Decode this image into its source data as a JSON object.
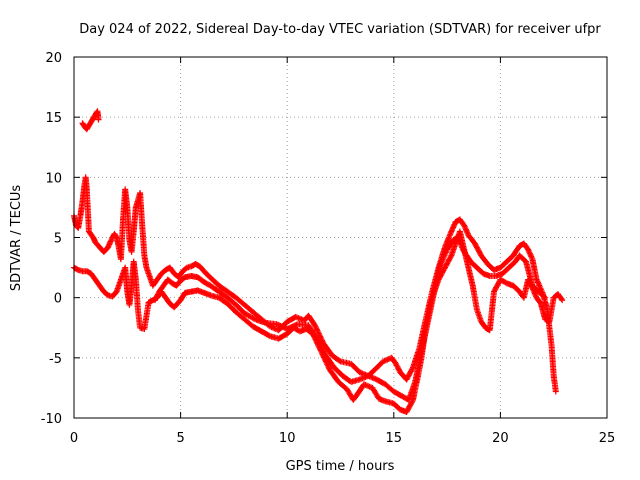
{
  "chart_data": {
    "type": "scatter",
    "title": "Day 024 of 2022, Sidereal Day-to-day VTEC variation (SDTVAR) for receiver ufpr",
    "xlabel": "GPS time / hours",
    "ylabel": "SDTVAR / TECUs",
    "xlim": [
      0,
      25
    ],
    "ylim": [
      -10,
      20
    ],
    "xticks": [
      0,
      5,
      10,
      15,
      20,
      25
    ],
    "yticks": [
      -10,
      -5,
      0,
      5,
      10,
      15,
      20
    ],
    "grid": true,
    "marker": "+",
    "series": [
      {
        "name": "upper track",
        "color": "#ff0000",
        "points": [
          [
            0.0,
            6.8
          ],
          [
            0.1,
            6.0
          ],
          [
            0.2,
            5.8
          ],
          [
            0.3,
            6.8
          ],
          [
            0.4,
            8.0
          ],
          [
            0.5,
            9.5
          ],
          [
            0.55,
            10.0
          ],
          [
            0.6,
            9.0
          ],
          [
            0.7,
            5.5
          ],
          [
            0.9,
            5.0
          ],
          [
            1.0,
            4.6
          ],
          [
            1.2,
            4.2
          ],
          [
            1.4,
            3.8
          ],
          [
            1.6,
            4.2
          ],
          [
            1.8,
            5.0
          ],
          [
            1.9,
            5.3
          ],
          [
            2.0,
            5.0
          ],
          [
            2.1,
            4.2
          ],
          [
            2.2,
            3.2
          ],
          [
            2.3,
            6.5
          ],
          [
            2.4,
            9.0
          ],
          [
            2.5,
            7.5
          ],
          [
            2.6,
            4.8
          ],
          [
            2.7,
            3.8
          ],
          [
            2.8,
            5.5
          ],
          [
            2.9,
            7.5
          ],
          [
            3.1,
            8.7
          ],
          [
            3.2,
            6.0
          ],
          [
            3.3,
            3.5
          ],
          [
            3.4,
            2.5
          ],
          [
            3.5,
            2.0
          ],
          [
            3.7,
            1.0
          ],
          [
            3.9,
            1.5
          ],
          [
            4.1,
            2.0
          ],
          [
            4.3,
            2.3
          ],
          [
            4.5,
            2.5
          ],
          [
            4.7,
            2.0
          ],
          [
            4.9,
            1.7
          ],
          [
            5.1,
            2.2
          ],
          [
            5.3,
            2.5
          ],
          [
            5.5,
            2.6
          ],
          [
            5.7,
            2.8
          ],
          [
            5.9,
            2.6
          ],
          [
            6.2,
            2.0
          ],
          [
            6.5,
            1.5
          ],
          [
            6.8,
            1.0
          ],
          [
            7.2,
            0.5
          ],
          [
            7.6,
            0.0
          ],
          [
            8.0,
            -0.6
          ],
          [
            8.4,
            -1.2
          ],
          [
            8.8,
            -1.8
          ],
          [
            9.2,
            -2.4
          ],
          [
            9.6,
            -2.7
          ],
          [
            10.0,
            -2.0
          ],
          [
            10.4,
            -1.6
          ],
          [
            10.8,
            -1.9
          ],
          [
            11.0,
            -1.5
          ],
          [
            11.3,
            -2.3
          ],
          [
            11.7,
            -3.8
          ],
          [
            12.1,
            -4.8
          ],
          [
            12.5,
            -5.3
          ],
          [
            13.0,
            -5.5
          ],
          [
            13.4,
            -6.2
          ],
          [
            13.8,
            -6.5
          ],
          [
            14.1,
            -6.0
          ],
          [
            14.5,
            -5.3
          ],
          [
            14.9,
            -5.0
          ],
          [
            15.1,
            -5.5
          ],
          [
            15.3,
            -6.2
          ],
          [
            15.6,
            -6.8
          ],
          [
            15.9,
            -5.8
          ],
          [
            16.2,
            -4.2
          ],
          [
            16.5,
            -1.8
          ],
          [
            16.8,
            0.5
          ],
          [
            17.1,
            2.5
          ],
          [
            17.4,
            4.2
          ],
          [
            17.7,
            5.5
          ],
          [
            17.9,
            6.3
          ],
          [
            18.1,
            6.5
          ],
          [
            18.3,
            6.0
          ],
          [
            18.5,
            5.2
          ],
          [
            18.8,
            4.5
          ],
          [
            19.1,
            3.5
          ],
          [
            19.4,
            2.8
          ],
          [
            19.7,
            2.3
          ],
          [
            20.0,
            2.5
          ],
          [
            20.3,
            3.0
          ],
          [
            20.6,
            3.5
          ],
          [
            20.9,
            4.3
          ],
          [
            21.1,
            4.5
          ],
          [
            21.3,
            4.0
          ],
          [
            21.5,
            3.2
          ],
          [
            21.7,
            1.5
          ],
          [
            22.0,
            0.3
          ],
          [
            22.2,
            -1.0
          ],
          [
            22.4,
            -4.0
          ],
          [
            22.5,
            -6.5
          ],
          [
            22.6,
            -7.8
          ]
        ]
      },
      {
        "name": "lower track",
        "color": "#ff0000",
        "points": [
          [
            0.0,
            2.5
          ],
          [
            0.2,
            2.3
          ],
          [
            0.4,
            2.2
          ],
          [
            0.6,
            2.2
          ],
          [
            0.8,
            2.0
          ],
          [
            1.0,
            1.5
          ],
          [
            1.2,
            1.0
          ],
          [
            1.4,
            0.5
          ],
          [
            1.6,
            0.2
          ],
          [
            1.8,
            0.1
          ],
          [
            2.0,
            0.5
          ],
          [
            2.2,
            1.5
          ],
          [
            2.4,
            2.5
          ],
          [
            2.5,
            0.5
          ],
          [
            2.6,
            -0.6
          ],
          [
            2.7,
            1.0
          ],
          [
            2.8,
            3.0
          ],
          [
            2.9,
            1.5
          ],
          [
            3.0,
            -1.0
          ],
          [
            3.1,
            -2.5
          ],
          [
            3.3,
            -2.6
          ],
          [
            3.5,
            -0.4
          ],
          [
            3.7,
            -0.2
          ],
          [
            3.9,
            0.0
          ],
          [
            4.1,
            0.5
          ],
          [
            4.3,
            0.0
          ],
          [
            4.5,
            -0.5
          ],
          [
            4.7,
            -0.8
          ],
          [
            5.0,
            -0.2
          ],
          [
            5.2,
            0.4
          ],
          [
            5.5,
            0.5
          ],
          [
            5.8,
            0.6
          ],
          [
            6.1,
            0.4
          ],
          [
            6.4,
            0.2
          ],
          [
            6.8,
            0.0
          ],
          [
            7.2,
            -0.5
          ],
          [
            7.6,
            -1.2
          ],
          [
            8.0,
            -1.8
          ],
          [
            8.4,
            -2.4
          ],
          [
            8.8,
            -2.8
          ],
          [
            9.2,
            -3.2
          ],
          [
            9.6,
            -3.4
          ],
          [
            10.0,
            -3.0
          ],
          [
            10.3,
            -2.5
          ],
          [
            10.6,
            -2.8
          ],
          [
            10.9,
            -2.6
          ],
          [
            11.2,
            -3.0
          ],
          [
            11.6,
            -4.5
          ],
          [
            12.0,
            -6.0
          ],
          [
            12.4,
            -7.0
          ],
          [
            12.8,
            -7.6
          ],
          [
            13.1,
            -8.5
          ],
          [
            13.3,
            -8.0
          ],
          [
            13.6,
            -7.2
          ],
          [
            14.0,
            -7.5
          ],
          [
            14.3,
            -8.4
          ],
          [
            14.6,
            -8.6
          ],
          [
            15.0,
            -8.8
          ],
          [
            15.3,
            -9.3
          ],
          [
            15.6,
            -9.5
          ],
          [
            15.9,
            -8.5
          ],
          [
            16.1,
            -6.8
          ],
          [
            16.3,
            -5.0
          ],
          [
            16.5,
            -2.5
          ],
          [
            16.8,
            0.0
          ],
          [
            17.1,
            1.5
          ],
          [
            17.4,
            2.5
          ],
          [
            17.7,
            3.5
          ],
          [
            17.9,
            4.5
          ],
          [
            18.1,
            5.5
          ],
          [
            18.3,
            4.0
          ],
          [
            18.5,
            2.5
          ],
          [
            18.7,
            1.0
          ],
          [
            18.9,
            -1.0
          ],
          [
            19.1,
            -2.0
          ],
          [
            19.3,
            -2.5
          ],
          [
            19.5,
            -2.7
          ],
          [
            19.7,
            0.5
          ],
          [
            20.0,
            1.5
          ],
          [
            20.3,
            1.2
          ],
          [
            20.6,
            1.0
          ],
          [
            20.9,
            0.5
          ],
          [
            21.1,
            0.0
          ],
          [
            21.3,
            1.5
          ],
          [
            21.5,
            0.8
          ],
          [
            21.7,
            0.0
          ],
          [
            21.9,
            -0.5
          ],
          [
            22.1,
            -1.8
          ],
          [
            22.3,
            -2.0
          ],
          [
            22.5,
            0.0
          ],
          [
            22.7,
            0.3
          ],
          [
            22.9,
            -0.2
          ]
        ]
      },
      {
        "name": "middle track",
        "color": "#ff0000",
        "points": [
          [
            3.8,
            -0.2
          ],
          [
            4.0,
            0.5
          ],
          [
            4.2,
            1.0
          ],
          [
            4.4,
            1.5
          ],
          [
            4.6,
            1.2
          ],
          [
            4.8,
            1.0
          ],
          [
            5.0,
            1.4
          ],
          [
            5.2,
            1.7
          ],
          [
            5.5,
            1.8
          ],
          [
            5.8,
            1.7
          ],
          [
            6.1,
            1.3
          ],
          [
            6.4,
            1.0
          ],
          [
            6.8,
            0.5
          ],
          [
            7.2,
            0.0
          ],
          [
            7.6,
            -0.6
          ],
          [
            8.0,
            -1.3
          ],
          [
            8.5,
            -1.8
          ],
          [
            9.0,
            -2.1
          ],
          [
            9.5,
            -2.2
          ],
          [
            10.0,
            -2.6
          ],
          [
            10.5,
            -2.2
          ],
          [
            11.0,
            -2.3
          ],
          [
            11.4,
            -3.5
          ],
          [
            11.8,
            -4.8
          ],
          [
            12.2,
            -5.8
          ],
          [
            12.6,
            -6.5
          ],
          [
            13.0,
            -7.0
          ],
          [
            13.4,
            -6.8
          ],
          [
            13.8,
            -6.5
          ],
          [
            14.2,
            -6.8
          ],
          [
            14.6,
            -7.2
          ],
          [
            15.0,
            -7.8
          ],
          [
            15.4,
            -8.2
          ],
          [
            15.7,
            -8.5
          ],
          [
            16.0,
            -7.0
          ],
          [
            16.3,
            -4.5
          ],
          [
            16.6,
            -2.0
          ],
          [
            16.9,
            0.5
          ],
          [
            17.2,
            2.8
          ],
          [
            17.5,
            4.0
          ],
          [
            17.8,
            4.8
          ],
          [
            18.0,
            5.0
          ],
          [
            18.3,
            3.8
          ],
          [
            18.6,
            3.0
          ],
          [
            18.9,
            2.5
          ],
          [
            19.2,
            2.0
          ],
          [
            19.5,
            1.8
          ],
          [
            19.8,
            1.8
          ],
          [
            20.1,
            2.0
          ],
          [
            20.4,
            2.5
          ],
          [
            20.7,
            3.0
          ],
          [
            20.9,
            3.5
          ],
          [
            21.2,
            3.0
          ],
          [
            21.5,
            1.0
          ],
          [
            21.8,
            0.5
          ],
          [
            22.1,
            0.0
          ]
        ]
      },
      {
        "name": "isolated cluster",
        "color": "#ff0000",
        "points": [
          [
            0.4,
            14.5
          ],
          [
            0.5,
            14.2
          ],
          [
            0.6,
            14.0
          ],
          [
            0.7,
            14.3
          ],
          [
            0.8,
            14.6
          ],
          [
            0.9,
            14.9
          ],
          [
            1.0,
            15.2
          ],
          [
            1.1,
            15.5
          ],
          [
            1.15,
            14.8
          ]
        ]
      }
    ]
  }
}
